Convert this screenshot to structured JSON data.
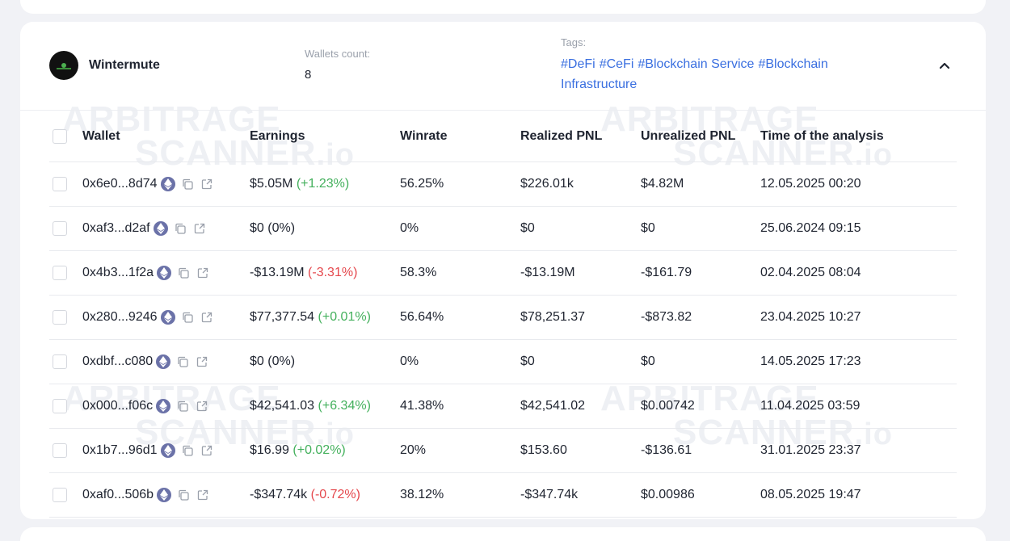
{
  "entity": {
    "name": "Wintermute",
    "wallets_count_label": "Wallets count:",
    "wallets_count": "8",
    "tags_label": "Tags:",
    "tags": [
      "#DeFi",
      "#CeFi",
      "#Blockchain Service",
      "#Blockchain Infrastructure"
    ]
  },
  "watermark": {
    "line1": "ARBITRAGE",
    "line2": "SCANNER",
    "suffix": ".io"
  },
  "table": {
    "headers": {
      "wallet": "Wallet",
      "earnings": "Earnings",
      "winrate": "Winrate",
      "realized": "Realized PNL",
      "unrealized": "Unrealized PNL",
      "time": "Time of the analysis"
    },
    "rows": [
      {
        "wallet": "0x6e0...8d74",
        "earn": "$5.05M",
        "change": "(+1.23%)",
        "trend": "pos",
        "winrate": "56.25%",
        "realized": "$226.01k",
        "unrealized": "$4.82M",
        "time": "12.05.2025 00:20"
      },
      {
        "wallet": "0xaf3...d2af",
        "earn": "$0",
        "change": "(0%)",
        "trend": "neutral",
        "winrate": "0%",
        "realized": "$0",
        "unrealized": "$0",
        "time": "25.06.2024 09:15"
      },
      {
        "wallet": "0x4b3...1f2a",
        "earn": "-$13.19M",
        "change": "(-3.31%)",
        "trend": "neg",
        "winrate": "58.3%",
        "realized": "-$13.19M",
        "unrealized": "-$161.79",
        "time": "02.04.2025 08:04"
      },
      {
        "wallet": "0x280...9246",
        "earn": "$77,377.54",
        "change": "(+0.01%)",
        "trend": "pos",
        "winrate": "56.64%",
        "realized": "$78,251.37",
        "unrealized": "-$873.82",
        "time": "23.04.2025 10:27"
      },
      {
        "wallet": "0xdbf...c080",
        "earn": "$0",
        "change": "(0%)",
        "trend": "neutral",
        "winrate": "0%",
        "realized": "$0",
        "unrealized": "$0",
        "time": "14.05.2025 17:23"
      },
      {
        "wallet": "0x000...f06c",
        "earn": "$42,541.03",
        "change": "(+6.34%)",
        "trend": "pos",
        "winrate": "41.38%",
        "realized": "$42,541.02",
        "unrealized": "$0.00742",
        "time": "11.04.2025 03:59"
      },
      {
        "wallet": "0x1b7...96d1",
        "earn": "$16.99",
        "change": "(+0.02%)",
        "trend": "pos",
        "winrate": "20%",
        "realized": "$153.60",
        "unrealized": "-$136.61",
        "time": "31.01.2025 23:37"
      },
      {
        "wallet": "0xaf0...506b",
        "earn": "-$347.74k",
        "change": "(-0.72%)",
        "trend": "neg",
        "winrate": "38.12%",
        "realized": "-$347.74k",
        "unrealized": "$0.00986",
        "time": "08.05.2025 19:47"
      }
    ]
  },
  "colors": {
    "positive": "#43b05c",
    "negative": "#e5484d",
    "tag": "#3a6fe0",
    "eth_badge": "#6b72a8"
  },
  "icons": {
    "chain": "ethereum-icon",
    "copy": "copy-icon",
    "open": "external-link-icon",
    "collapse": "chevron-up-icon"
  }
}
